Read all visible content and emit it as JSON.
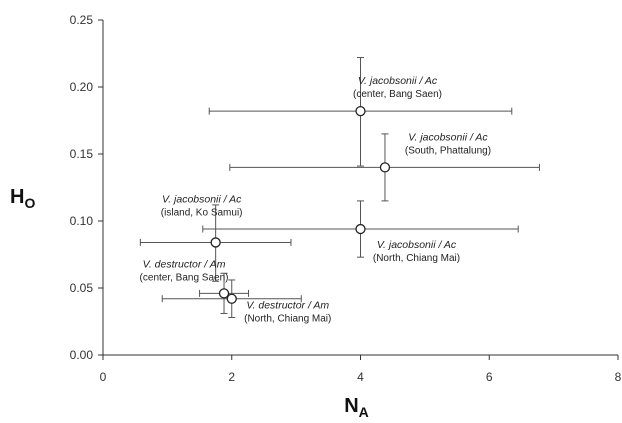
{
  "chart_data": {
    "type": "scatter",
    "title": "",
    "xlabel": "N",
    "xlabel_sub": "A",
    "ylabel": "H",
    "ylabel_sub": "O",
    "xlim": [
      0,
      8
    ],
    "ylim": [
      0,
      0.25
    ],
    "x_ticks": [
      "0",
      "2",
      "4",
      "6",
      "8"
    ],
    "y_ticks": [
      "0.00",
      "0.05",
      "0.10",
      "0.15",
      "0.20",
      "0.25"
    ],
    "grid": false,
    "points": [
      {
        "id": "p1",
        "x": 4.0,
        "y": 0.182,
        "x_err": [
          1.65,
          6.35
        ],
        "y_err": [
          0.141,
          0.222
        ],
        "label_title": "V. jacobsonii / Ac",
        "label_sub": "(center, Bang Saen)"
      },
      {
        "id": "p2",
        "x": 4.38,
        "y": 0.14,
        "x_err": [
          1.97,
          6.78
        ],
        "y_err": [
          0.115,
          0.165
        ],
        "label_title": "V. jacobsonii / Ac",
        "label_sub": "(South, Phattalung)"
      },
      {
        "id": "p3",
        "x": 4.0,
        "y": 0.094,
        "x_err": [
          1.55,
          6.45
        ],
        "y_err": [
          0.073,
          0.115
        ],
        "label_title": "V. jacobsonii / Ac",
        "label_sub": "(North, Chiang Mai)"
      },
      {
        "id": "p4",
        "x": 1.75,
        "y": 0.084,
        "x_err": [
          0.58,
          2.92
        ],
        "y_err": [
          0.055,
          0.112
        ],
        "label_title": "V. jacobsonii / Ac",
        "label_sub": "(island, Ko Samui)"
      },
      {
        "id": "p5",
        "x": 1.88,
        "y": 0.046,
        "x_err": [
          1.5,
          2.26
        ],
        "y_err": [
          0.031,
          0.061
        ],
        "label_title": "V. destructor / Am",
        "label_sub": "(center, Bang Saen)"
      },
      {
        "id": "p6",
        "x": 2.0,
        "y": 0.042,
        "x_err": [
          0.92,
          3.08
        ],
        "y_err": [
          0.028,
          0.056
        ],
        "label_title": "V. destructor / Am",
        "label_sub": "(North, Chiang Mai)"
      }
    ]
  }
}
